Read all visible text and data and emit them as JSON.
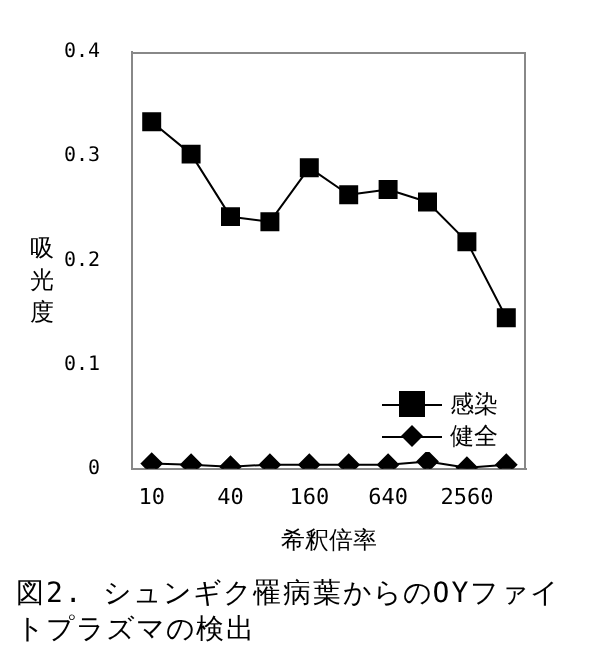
{
  "chart_data": {
    "type": "line",
    "title": "図2. シュンギク罹病葉からのOYファイトプラズマの検出",
    "xlabel": "希釈倍率",
    "ylabel": "吸光度",
    "categories": [
      "10",
      null,
      "40",
      null,
      "160",
      null,
      "640",
      null,
      "2560",
      null
    ],
    "series": [
      {
        "name": "感染",
        "color": "#000000",
        "marker": "square",
        "values": [
          0.333,
          0.302,
          0.242,
          0.237,
          0.289,
          0.263,
          0.268,
          0.256,
          0.218,
          0.145
        ]
      },
      {
        "name": "健全",
        "color": "#000000",
        "marker": "diamond",
        "values": [
          0.005,
          0.004,
          0.002,
          0.004,
          0.004,
          0.004,
          0.004,
          0.007,
          0.001,
          0.004
        ]
      }
    ],
    "ylim": [
      0,
      0.4
    ],
    "yticks": [
      0,
      0.1,
      0.2,
      0.3,
      0.4
    ],
    "legend": "bottom right",
    "grid": false
  }
}
